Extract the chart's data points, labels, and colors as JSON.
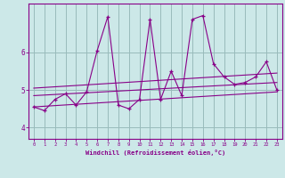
{
  "xlabel": "Windchill (Refroidissement éolien,°C)",
  "background_color": "#cce8e8",
  "line_color": "#880088",
  "grid_color": "#99bbbb",
  "xlim": [
    -0.5,
    23.5
  ],
  "ylim": [
    3.7,
    7.3
  ],
  "yticks": [
    4,
    5,
    6
  ],
  "xticks": [
    0,
    1,
    2,
    3,
    4,
    5,
    6,
    7,
    8,
    9,
    10,
    11,
    12,
    13,
    14,
    15,
    16,
    17,
    18,
    19,
    20,
    21,
    22,
    23
  ],
  "series": [
    [
      0,
      4.55
    ],
    [
      1,
      4.45
    ],
    [
      2,
      4.75
    ],
    [
      3,
      4.9
    ],
    [
      4,
      4.6
    ],
    [
      5,
      4.95
    ],
    [
      6,
      6.05
    ],
    [
      7,
      6.95
    ],
    [
      8,
      4.6
    ],
    [
      9,
      4.5
    ],
    [
      10,
      4.75
    ],
    [
      11,
      6.88
    ],
    [
      12,
      4.75
    ],
    [
      13,
      5.5
    ],
    [
      14,
      4.85
    ],
    [
      15,
      6.88
    ],
    [
      16,
      6.98
    ],
    [
      17,
      5.7
    ],
    [
      18,
      5.35
    ],
    [
      19,
      5.15
    ],
    [
      20,
      5.2
    ],
    [
      21,
      5.35
    ],
    [
      22,
      5.75
    ],
    [
      23,
      5.0
    ]
  ],
  "regression_lines": [
    {
      "x": [
        0,
        23
      ],
      "y": [
        4.55,
        4.95
      ]
    },
    {
      "x": [
        0,
        23
      ],
      "y": [
        4.85,
        5.2
      ]
    },
    {
      "x": [
        0,
        23
      ],
      "y": [
        5.05,
        5.45
      ]
    }
  ]
}
